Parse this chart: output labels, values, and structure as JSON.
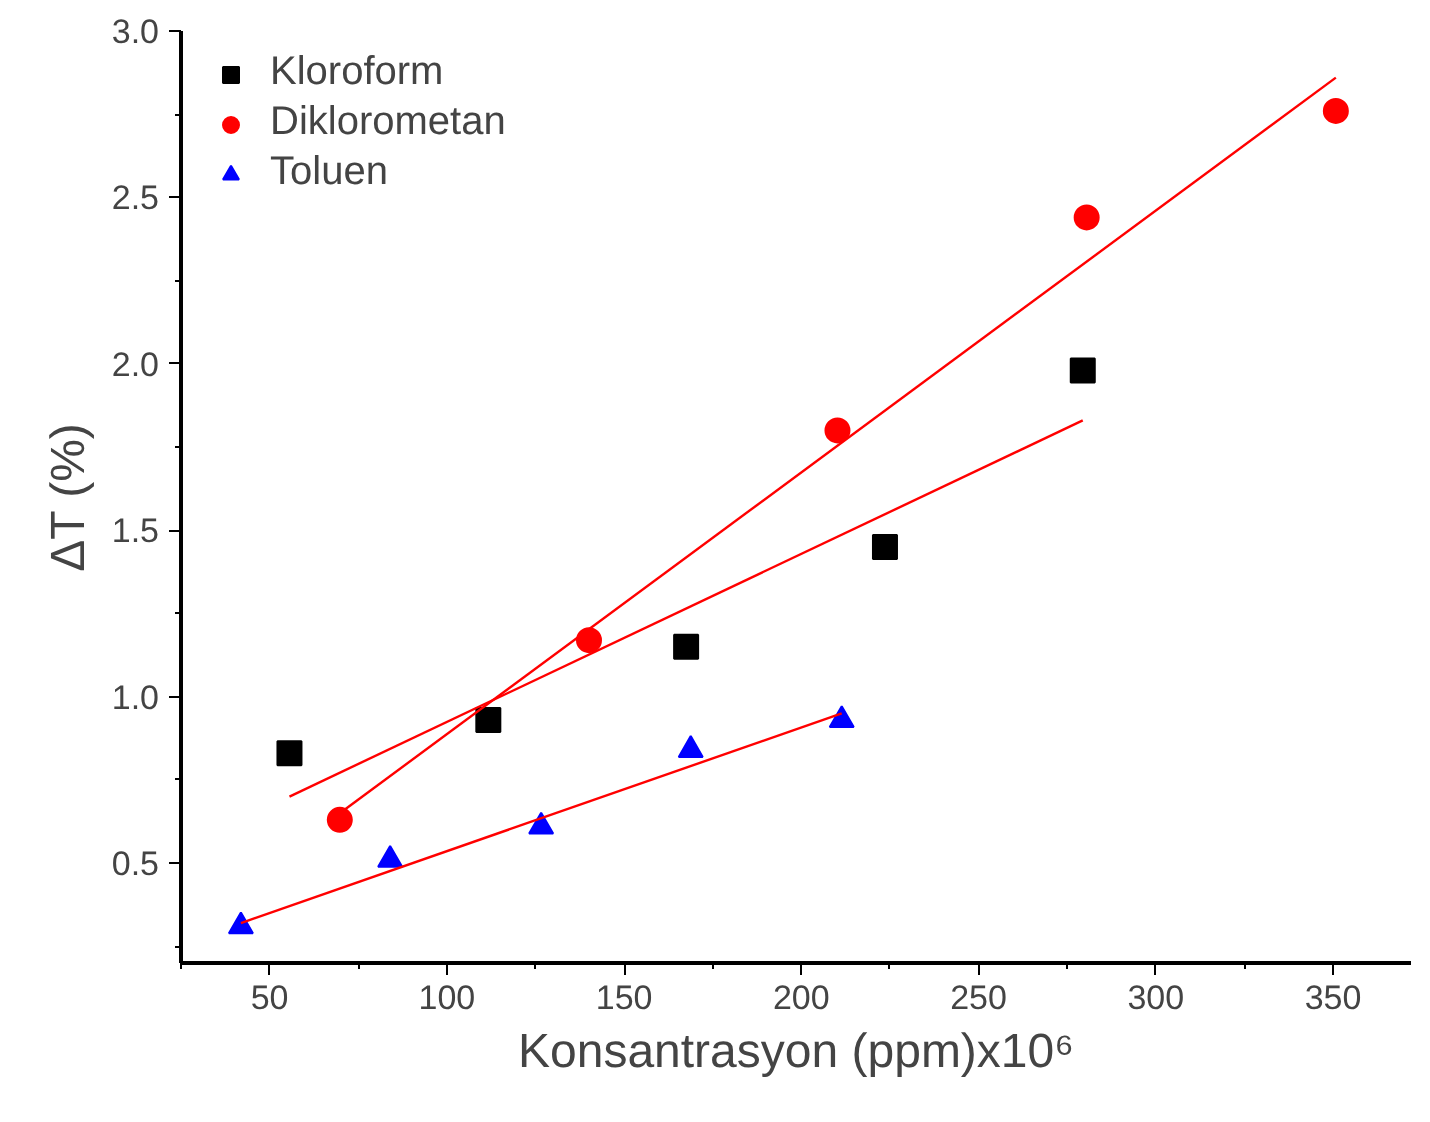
{
  "chart_data": {
    "type": "scatter",
    "xlabel": "Konsantrasyon (ppm)x10⁶",
    "ylabel": "ΔT (%)",
    "xlim": [
      25,
      372
    ],
    "ylim": [
      0.2,
      3.0
    ],
    "xticks": [
      50,
      100,
      150,
      200,
      250,
      300,
      350
    ],
    "yticks": [
      0.5,
      {
        "value": 1,
        "label": "1.0"
      },
      1.5,
      {
        "value": 2,
        "label": "2.0"
      },
      2.5,
      {
        "value": 3,
        "label": "3.0"
      }
    ],
    "grid": false,
    "legend": "top left",
    "series": [
      {
        "name": "Kloroform",
        "color": "#000000",
        "marker": "square",
        "x": [
          55.6,
          111.7,
          167.5,
          223.6,
          279.4
        ],
        "values": [
          0.83,
          0.93,
          1.15,
          1.45,
          1.98
        ]
      },
      {
        "name": "Diklorometan",
        "color": "#ff0000",
        "marker": "circle",
        "x": [
          69.8,
          140.1,
          210.2,
          280.5,
          350.8
        ],
        "values": [
          0.63,
          1.17,
          1.8,
          2.44,
          2.76
        ]
      },
      {
        "name": "Toluen",
        "color": "#0000ff",
        "marker": "triangle",
        "x": [
          41.9,
          84,
          126.6,
          168.8,
          211.4
        ],
        "values": [
          0.31,
          0.51,
          0.61,
          0.84,
          0.93
        ]
      },
      {
        "type": "line",
        "color": "#ff0000",
        "marker": "none",
        "x": [
          55.6,
          279.4
        ],
        "values": [
          0.7,
          1.83
        ]
      },
      {
        "type": "line",
        "color": "#ff0000",
        "marker": "none",
        "x": [
          69.8,
          350.8
        ],
        "values": [
          0.65,
          2.86
        ]
      },
      {
        "type": "line",
        "color": "#ff0000",
        "marker": "none",
        "x": [
          41.9,
          211.4
        ],
        "values": [
          0.32,
          0.95
        ]
      }
    ]
  }
}
